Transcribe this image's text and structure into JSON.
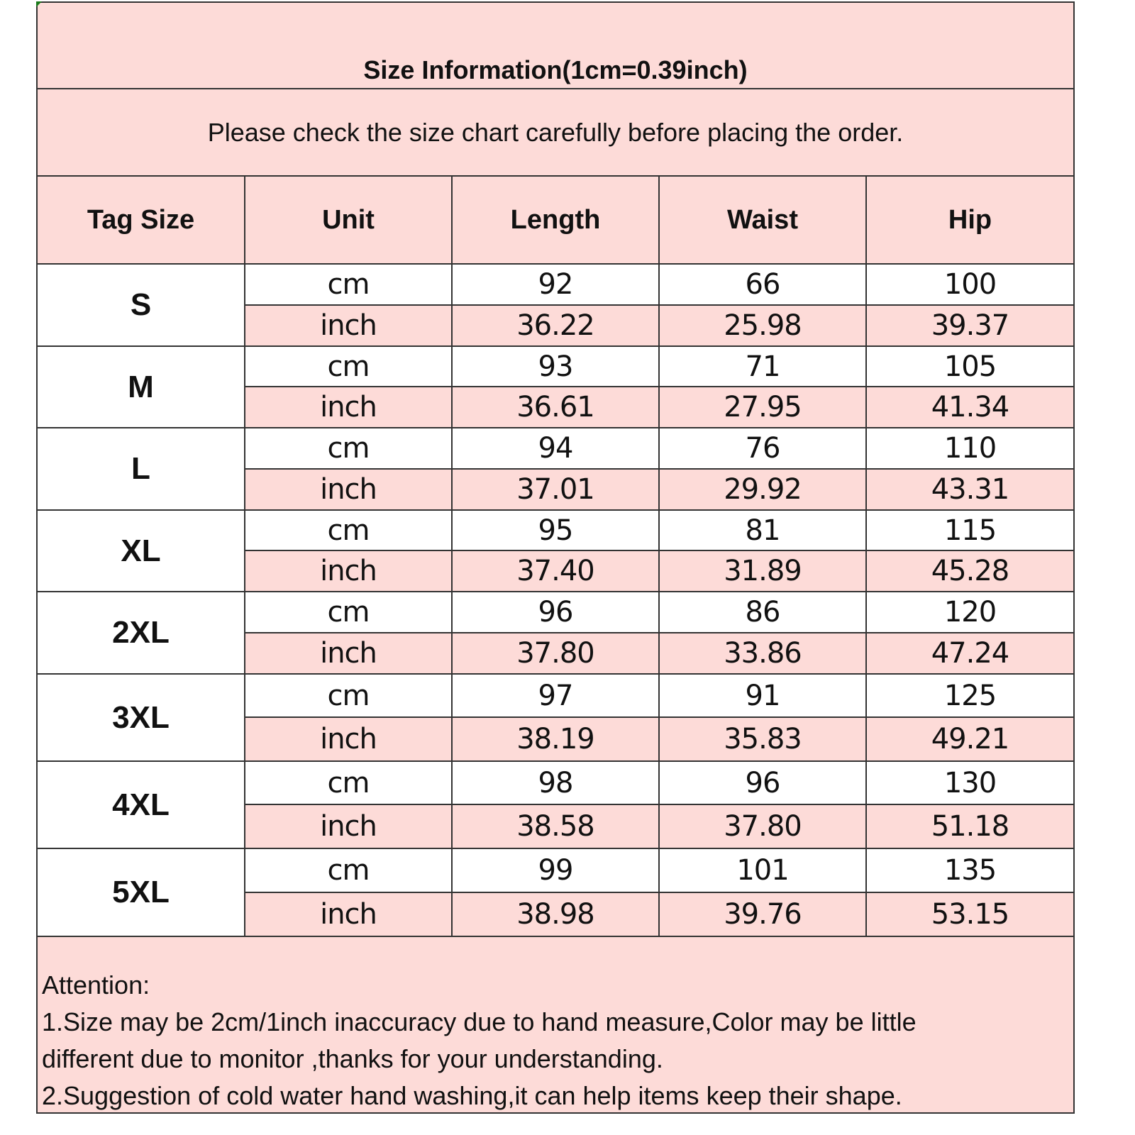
{
  "title": "Size Information(1cm=0.39inch)",
  "subtitle": "Please check the size chart carefully before placing the order.",
  "colors": {
    "pink": "#fddbd8",
    "white": "#ffffff",
    "border": "#333333"
  },
  "headers": [
    "Tag Size",
    "Unit",
    "Length",
    "Waist",
    "Hip"
  ],
  "units": {
    "cm": "cm",
    "inch": "inch"
  },
  "rows": [
    {
      "size": "S",
      "cm": [
        "92",
        "66",
        "100"
      ],
      "inch": [
        "36.22",
        "25.98",
        "39.37"
      ]
    },
    {
      "size": "M",
      "cm": [
        "93",
        "71",
        "105"
      ],
      "inch": [
        "36.61",
        "27.95",
        "41.34"
      ]
    },
    {
      "size": "L",
      "cm": [
        "94",
        "76",
        "110"
      ],
      "inch": [
        "37.01",
        "29.92",
        "43.31"
      ]
    },
    {
      "size": "XL",
      "cm": [
        "95",
        "81",
        "115"
      ],
      "inch": [
        "37.40",
        "31.89",
        "45.28"
      ]
    },
    {
      "size": "2XL",
      "cm": [
        "96",
        "86",
        "120"
      ],
      "inch": [
        "37.80",
        "33.86",
        "47.24"
      ]
    },
    {
      "size": "3XL",
      "cm": [
        "97",
        "91",
        "125"
      ],
      "inch": [
        "38.19",
        "35.83",
        "49.21"
      ]
    },
    {
      "size": "4XL",
      "cm": [
        "98",
        "96",
        "130"
      ],
      "inch": [
        "38.58",
        "37.80",
        "51.18"
      ]
    },
    {
      "size": "5XL",
      "cm": [
        "99",
        "101",
        "135"
      ],
      "inch": [
        "38.98",
        "39.76",
        "53.15"
      ]
    }
  ],
  "attention": {
    "heading": "Attention:",
    "lines": [
      "1.Size may be 2cm/1inch inaccuracy due to hand measure,Color may be little",
      "different due to monitor ,thanks for your understanding.",
      "2.Suggestion of cold water hand washing,it can help items keep their shape."
    ]
  }
}
